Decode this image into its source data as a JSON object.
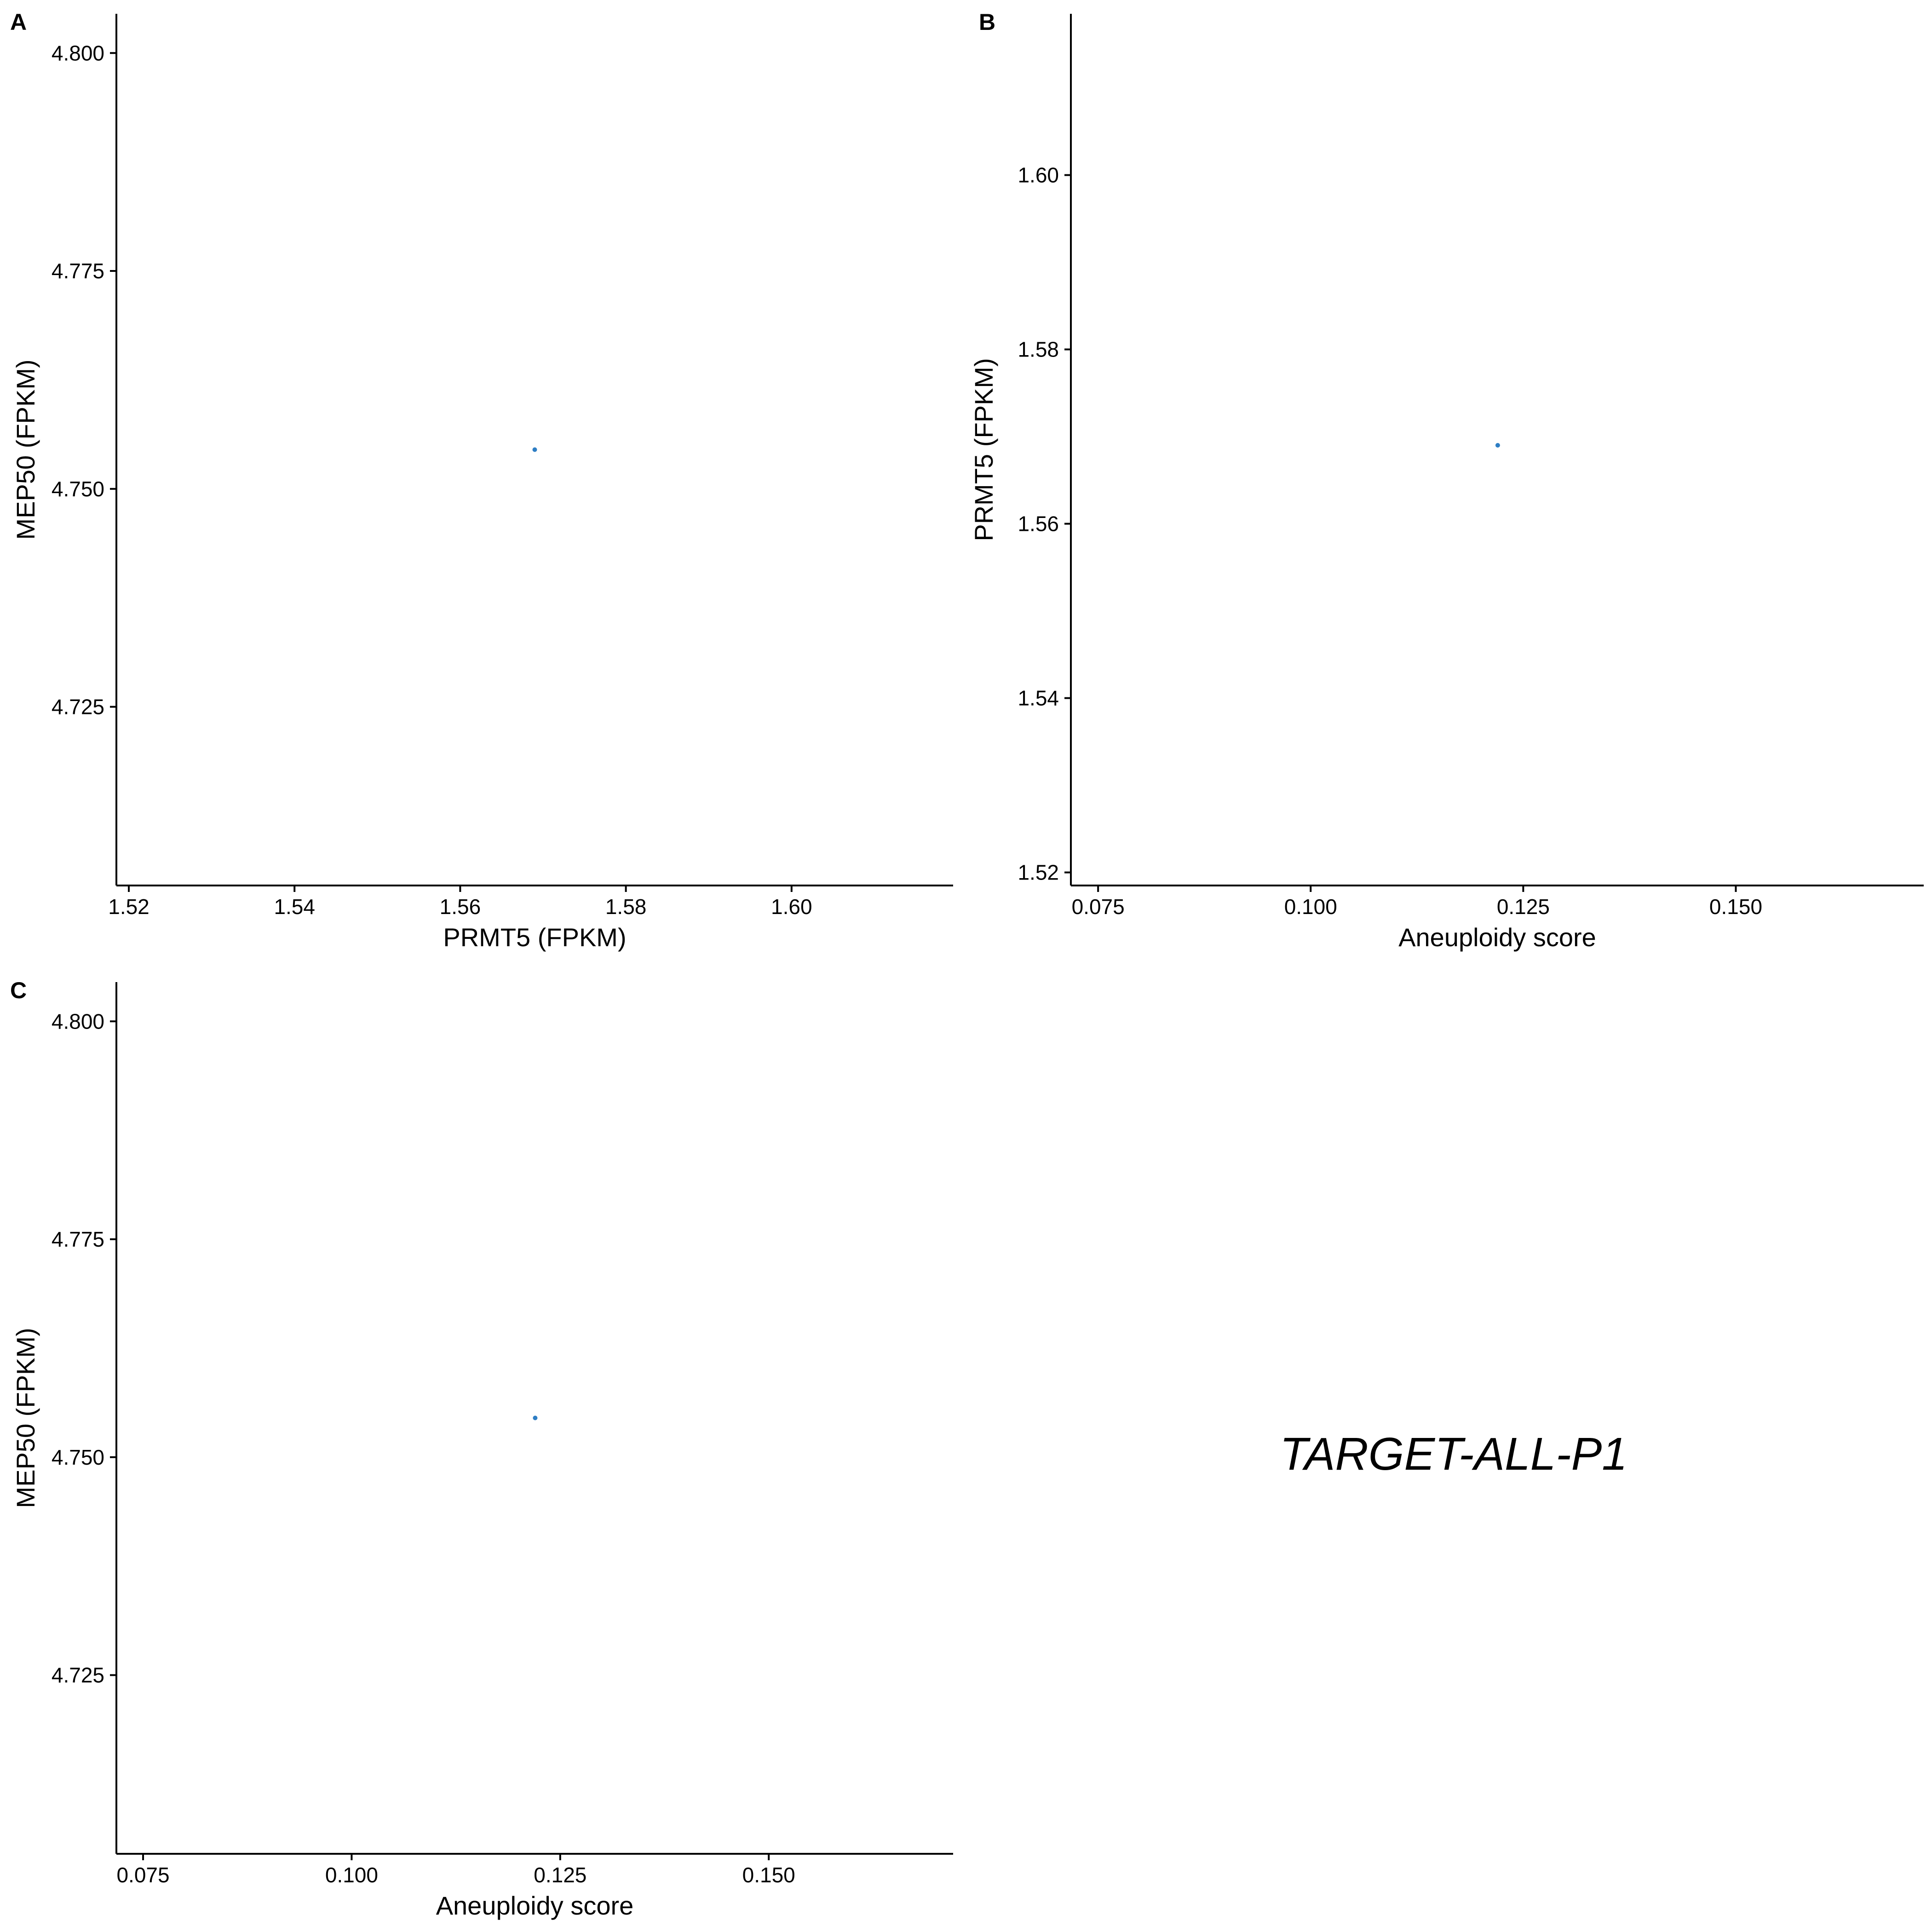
{
  "caption": "TARGET-ALL-P1",
  "point_color": "#2e7ec4",
  "chart_data": [
    {
      "type": "scatter",
      "panel": "A",
      "xlabel": "PRMT5 (FPKM)",
      "ylabel": "MEP50 (FPKM)",
      "xlim": [
        1.5185,
        1.6195
      ],
      "ylim": [
        4.7045,
        4.8045
      ],
      "xticks": [
        1.52,
        1.54,
        1.56,
        1.58,
        1.6
      ],
      "xtick_labels": [
        "1.52",
        "1.54",
        "1.56",
        "1.58",
        "1.60"
      ],
      "yticks": [
        4.725,
        4.75,
        4.775,
        4.8
      ],
      "ytick_labels": [
        "4.725",
        "4.750",
        "4.775",
        "4.800"
      ],
      "grid": false,
      "points": [
        {
          "x": 1.569,
          "y": 4.7545
        }
      ]
    },
    {
      "type": "scatter",
      "panel": "B",
      "xlabel": "Aneuploidy score",
      "ylabel": "PRMT5 (FPKM)",
      "xlim": [
        0.0718,
        0.1721
      ],
      "ylim": [
        1.5185,
        1.6185
      ],
      "xticks": [
        0.075,
        0.1,
        0.125,
        0.15
      ],
      "xtick_labels": [
        "0.075",
        "0.100",
        "0.125",
        "0.150"
      ],
      "yticks": [
        1.52,
        1.54,
        1.56,
        1.58,
        1.6
      ],
      "ytick_labels": [
        "1.52",
        "1.54",
        "1.56",
        "1.58",
        "1.60"
      ],
      "grid": false,
      "points": [
        {
          "x": 0.122,
          "y": 1.569
        }
      ]
    },
    {
      "type": "scatter",
      "panel": "C",
      "xlabel": "Aneuploidy score",
      "ylabel": "MEP50 (FPKM)",
      "xlim": [
        0.0718,
        0.1721
      ],
      "ylim": [
        4.7045,
        4.8045
      ],
      "xticks": [
        0.075,
        0.1,
        0.125,
        0.15
      ],
      "xtick_labels": [
        "0.075",
        "0.100",
        "0.125",
        "0.150"
      ],
      "yticks": [
        4.725,
        4.75,
        4.775,
        4.8
      ],
      "ytick_labels": [
        "4.725",
        "4.750",
        "4.775",
        "4.800"
      ],
      "grid": false,
      "points": [
        {
          "x": 0.122,
          "y": 4.7545
        }
      ]
    }
  ]
}
